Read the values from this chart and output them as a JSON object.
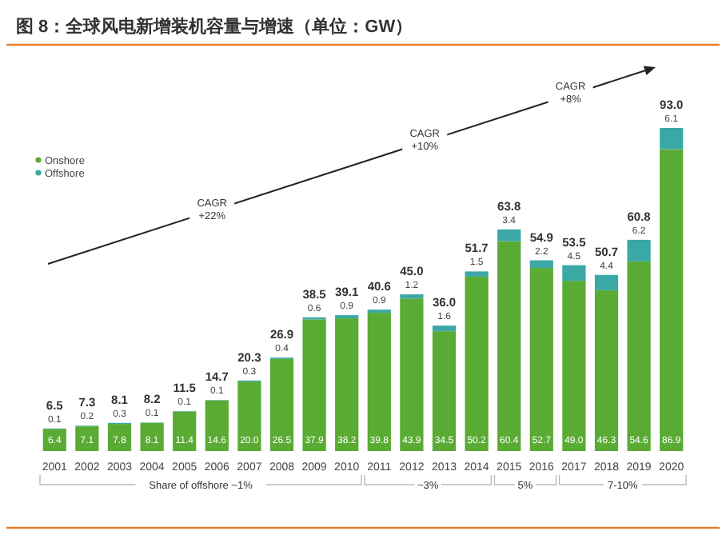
{
  "chart_data": {
    "type": "bar",
    "title": "图 8：全球风电新增装机容量与增速（单位：GW）",
    "categories": [
      "2001",
      "2002",
      "2003",
      "2004",
      "2005",
      "2006",
      "2007",
      "2008",
      "2009",
      "2010",
      "2011",
      "2012",
      "2013",
      "2014",
      "2015",
      "2016",
      "2017",
      "2018",
      "2019",
      "2020"
    ],
    "stacked": true,
    "legend": "top left",
    "series": [
      {
        "name": "Onshore",
        "color": "#5aab34",
        "values": [
          6.4,
          7.1,
          7.8,
          8.1,
          11.4,
          14.6,
          20.0,
          26.5,
          37.9,
          38.2,
          39.8,
          43.9,
          34.5,
          50.2,
          60.4,
          52.7,
          49.0,
          46.3,
          54.6,
          86.9
        ],
        "value_labels": [
          "6.4",
          "7.1",
          "7.8",
          "8.1",
          "11.4",
          "14.6",
          "20.0",
          "26.5",
          "37.9",
          "38.2",
          "39.8",
          "43.9",
          "34.5",
          "50.2",
          "60.4",
          "52.7",
          "49.0",
          "46.3",
          "54.6",
          "86.9"
        ]
      },
      {
        "name": "Offshore",
        "color": "#3aa9a6",
        "values": [
          0.1,
          0.2,
          0.3,
          0.1,
          0.1,
          0.1,
          0.3,
          0.4,
          0.6,
          0.9,
          0.9,
          1.2,
          1.6,
          1.5,
          3.4,
          2.2,
          4.5,
          4.4,
          6.2,
          6.1
        ],
        "value_labels": [
          "0.1",
          "0.2",
          "0.3",
          "0.1",
          "0.1",
          "0.1",
          "0.3",
          "0.4",
          "0.6",
          "0.9",
          "0.9",
          "1.2",
          "1.6",
          "1.5",
          "3.4",
          "2.2",
          "4.5",
          "4.4",
          "6.2",
          "6.1"
        ]
      }
    ],
    "totals": [
      "6.5",
      "7.3",
      "8.1",
      "8.2",
      "11.5",
      "14.7",
      "20.3",
      "26.9",
      "38.5",
      "39.1",
      "40.6",
      "45.0",
      "36.0",
      "51.7",
      "63.8",
      "54.9",
      "53.5",
      "50.7",
      "60.8",
      "93.0"
    ],
    "annotations": [
      "CAGR\n+22%",
      "CAGR\n+10%",
      "CAGR\n+8%",
      "Share of offshore ~1%",
      "~3%",
      "5%",
      "7-10%"
    ]
  }
}
